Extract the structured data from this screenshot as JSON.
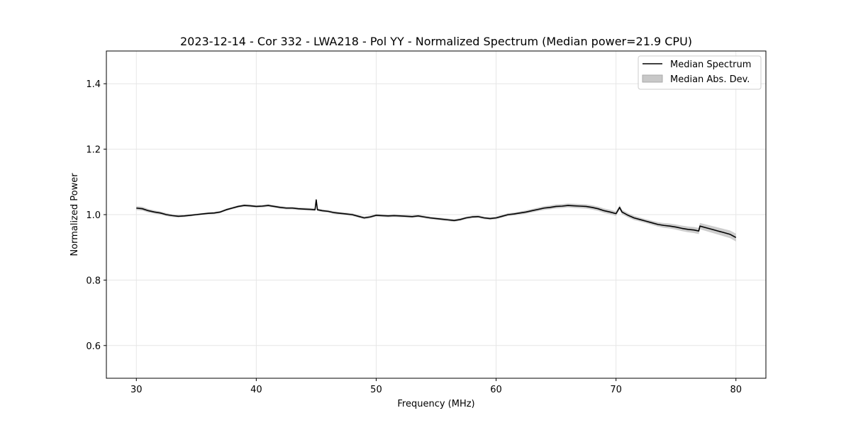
{
  "chart_data": {
    "type": "line",
    "title": "2023-12-14 - Cor 332 - LWA218 - Pol YY - Normalized Spectrum (Median power=21.9 CPU)",
    "xlabel": "Frequency (MHz)",
    "ylabel": "Normalized Power",
    "xlim": [
      27.5,
      82.5
    ],
    "ylim": [
      0.5,
      1.5
    ],
    "xticks": [
      30,
      40,
      50,
      60,
      70,
      80
    ],
    "xtick_labels": [
      "30",
      "40",
      "50",
      "60",
      "70",
      "80"
    ],
    "yticks": [
      0.6,
      0.8,
      1.0,
      1.2,
      1.4
    ],
    "ytick_labels": [
      "0.6",
      "0.8",
      "1.0",
      "1.2",
      "1.4"
    ],
    "grid": true,
    "legend": {
      "placement": "top-right",
      "entries": [
        "Median Spectrum",
        "Median Abs. Dev."
      ]
    },
    "series": [
      {
        "name": "Median Spectrum",
        "color": "#000000",
        "x": [
          30,
          30.5,
          31,
          31.5,
          32,
          32.5,
          33,
          33.5,
          34,
          34.5,
          35,
          35.5,
          36,
          36.5,
          37,
          37.5,
          38,
          38.5,
          39,
          39.5,
          40,
          40.5,
          41,
          41.5,
          42,
          42.5,
          43,
          43.5,
          44,
          44.5,
          44.9,
          45,
          45.1,
          45.5,
          46,
          46.5,
          47,
          47.5,
          48,
          48.5,
          49,
          49.5,
          50,
          50.5,
          51,
          51.5,
          52,
          52.5,
          53,
          53.5,
          54,
          54.5,
          55,
          55.5,
          56,
          56.5,
          57,
          57.5,
          58,
          58.5,
          59,
          59.5,
          60,
          60.5,
          61,
          61.5,
          62,
          62.5,
          63,
          63.5,
          64,
          64.5,
          65,
          65.5,
          66,
          66.5,
          67,
          67.5,
          68,
          68.5,
          69,
          69.5,
          70,
          70.3,
          70.5,
          71,
          71.5,
          72,
          72.5,
          73,
          73.5,
          74,
          74.5,
          75,
          75.5,
          76,
          76.5,
          76.9,
          77,
          77.5,
          78,
          78.5,
          79,
          79.5,
          80
        ],
        "y": [
          1.02,
          1.018,
          1.012,
          1.008,
          1.005,
          1.0,
          0.997,
          0.995,
          0.996,
          0.998,
          1.0,
          1.002,
          1.004,
          1.005,
          1.008,
          1.015,
          1.02,
          1.025,
          1.028,
          1.027,
          1.025,
          1.026,
          1.028,
          1.025,
          1.022,
          1.02,
          1.02,
          1.018,
          1.017,
          1.016,
          1.015,
          1.045,
          1.015,
          1.012,
          1.01,
          1.006,
          1.004,
          1.002,
          1.0,
          0.995,
          0.99,
          0.993,
          0.998,
          0.997,
          0.996,
          0.997,
          0.996,
          0.995,
          0.994,
          0.996,
          0.993,
          0.99,
          0.988,
          0.986,
          0.984,
          0.982,
          0.985,
          0.99,
          0.993,
          0.994,
          0.99,
          0.988,
          0.99,
          0.995,
          1.0,
          1.002,
          1.005,
          1.008,
          1.012,
          1.016,
          1.02,
          1.022,
          1.025,
          1.026,
          1.028,
          1.027,
          1.026,
          1.025,
          1.022,
          1.018,
          1.012,
          1.008,
          1.003,
          1.022,
          1.008,
          0.998,
          0.99,
          0.985,
          0.98,
          0.975,
          0.97,
          0.967,
          0.965,
          0.962,
          0.958,
          0.955,
          0.953,
          0.95,
          0.965,
          0.96,
          0.955,
          0.95,
          0.945,
          0.94,
          0.93
        ]
      },
      {
        "name": "Median Abs. Dev.",
        "color": "#c8c8c8",
        "x": [
          30,
          35,
          40,
          45,
          50,
          55,
          60,
          65,
          70,
          72.5,
          75,
          77.5,
          80
        ],
        "deviation": [
          0.006,
          0.003,
          0.004,
          0.004,
          0.004,
          0.004,
          0.004,
          0.006,
          0.007,
          0.006,
          0.008,
          0.01,
          0.012
        ]
      }
    ]
  }
}
